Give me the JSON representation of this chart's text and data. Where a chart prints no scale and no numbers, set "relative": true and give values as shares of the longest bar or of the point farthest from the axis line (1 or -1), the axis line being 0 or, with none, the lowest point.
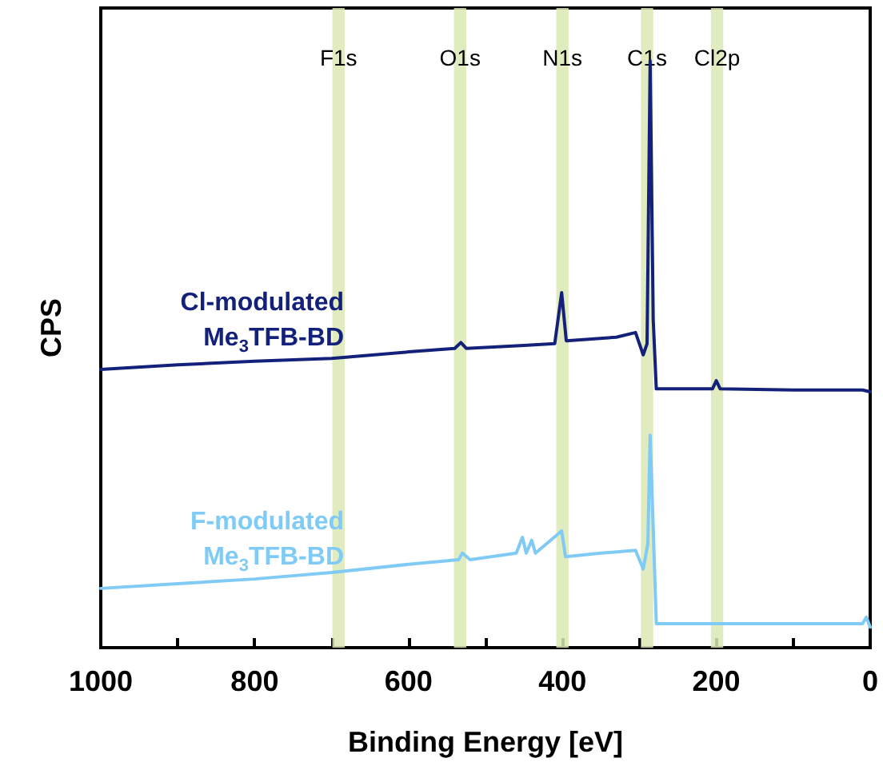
{
  "chart_data": {
    "type": "line",
    "xlabel": "Binding Energy [eV]",
    "ylabel": "CPS",
    "relative": true,
    "legend": false,
    "grid": false,
    "marker": "none",
    "line_style": "solid",
    "xlim": [
      1000,
      0
    ],
    "xticks": [
      0,
      {
        "value": 100,
        "label": null
      },
      200,
      {
        "value": 300,
        "label": null
      },
      400,
      {
        "value": 500,
        "label": null
      },
      600,
      {
        "value": 700,
        "label": null
      },
      800,
      {
        "value": 900,
        "label": null
      },
      1000
    ],
    "bands": [
      {
        "axis": "x",
        "from": 683,
        "to": 699,
        "label": "F1s",
        "color": "#dbe8b4"
      },
      {
        "axis": "x",
        "from": 525,
        "to": 541,
        "label": "O1s",
        "color": "#dbe8b4"
      },
      {
        "axis": "x",
        "from": 392,
        "to": 408,
        "label": "N1s",
        "color": "#dbe8b4"
      },
      {
        "axis": "x",
        "from": 282,
        "to": 298,
        "label": "C1s",
        "color": "#dbe8b4"
      },
      {
        "axis": "x",
        "from": 191,
        "to": 207,
        "label": "Cl2p",
        "color": "#dbe8b4"
      }
    ],
    "series": [
      {
        "name": "Cl-modulated Me$_{3}$TFB-BD",
        "color": "#14217a",
        "x": [
          1000,
          900,
          800,
          700,
          600,
          540,
          532,
          525,
          450,
          410,
          401,
          395,
          330,
          305,
          295,
          290,
          286,
          282,
          278,
          250,
          205,
          200,
          195,
          100,
          10,
          0
        ],
        "values": [
          0.474,
          0.482,
          0.488,
          0.493,
          0.504,
          0.51,
          0.52,
          0.51,
          0.515,
          0.518,
          0.605,
          0.523,
          0.529,
          0.537,
          0.499,
          0.518,
          1,
          0.559,
          0.441,
          0.441,
          0.441,
          0.455,
          0.441,
          0.439,
          0.439,
          0.436
        ]
      },
      {
        "name": "F-modulated Me$_{3}$TFB-BD",
        "color": "#7fcbf5",
        "x": [
          1000,
          900,
          800,
          700,
          600,
          535,
          530,
          520,
          460,
          452,
          447,
          440,
          435,
          401,
          396,
          350,
          305,
          295,
          289,
          286,
          282,
          278,
          200,
          100,
          10,
          5,
          0
        ],
        "values": [
          0.101,
          0.109,
          0.117,
          0.128,
          0.142,
          0.15,
          0.161,
          0.15,
          0.161,
          0.188,
          0.161,
          0.183,
          0.161,
          0.199,
          0.155,
          0.161,
          0.166,
          0.134,
          0.177,
          0.362,
          0.204,
          0.041,
          0.041,
          0.041,
          0.041,
          0.052,
          0.035
        ]
      }
    ]
  }
}
